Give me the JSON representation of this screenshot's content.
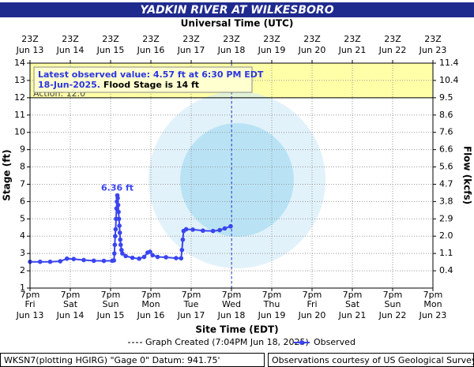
{
  "chart_data": {
    "type": "hydrograph",
    "title": "YADKIN RIVER AT WILKESBORO",
    "top_axis_label": "Universal Time (UTC)",
    "x_axis_label": "Site Time (EDT)",
    "y_axis_label": "Stage (ft)",
    "y2_axis_label": "Flow (kcfs)",
    "xlim": [
      "Jun 13 19:00",
      "Jun 23 19:00"
    ],
    "xticks": [
      {
        "value": "Jun 13 19:00",
        "time": "7pm",
        "weekday": "Fri",
        "date": "Jun 13",
        "utc_time": "23Z",
        "utc_date": "Jun 13"
      },
      {
        "value": "Jun 14 19:00",
        "time": "7pm",
        "weekday": "Sat",
        "date": "Jun 14",
        "utc_time": "23Z",
        "utc_date": "Jun 14"
      },
      {
        "value": "Jun 15 19:00",
        "time": "7pm",
        "weekday": "Sun",
        "date": "Jun 15",
        "utc_time": "23Z",
        "utc_date": "Jun 15"
      },
      {
        "value": "Jun 16 19:00",
        "time": "7pm",
        "weekday": "Mon",
        "date": "Jun 16",
        "utc_time": "23Z",
        "utc_date": "Jun 16"
      },
      {
        "value": "Jun 17 19:00",
        "time": "7pm",
        "weekday": "Tue",
        "date": "Jun 17",
        "utc_time": "23Z",
        "utc_date": "Jun 17"
      },
      {
        "value": "Jun 18 19:00",
        "time": "7pm",
        "weekday": "Wed",
        "date": "Jun 18",
        "utc_time": "23Z",
        "utc_date": "Jun 18"
      },
      {
        "value": "Jun 19 19:00",
        "time": "7pm",
        "weekday": "Thu",
        "date": "Jun 19",
        "utc_time": "23Z",
        "utc_date": "Jun 19"
      },
      {
        "value": "Jun 20 19:00",
        "time": "7pm",
        "weekday": "Fri",
        "date": "Jun 20",
        "utc_time": "23Z",
        "utc_date": "Jun 20"
      },
      {
        "value": "Jun 21 19:00",
        "time": "7pm",
        "weekday": "Sat",
        "date": "Jun 21",
        "utc_time": "23Z",
        "utc_date": "Jun 21"
      },
      {
        "value": "Jun 22 19:00",
        "time": "7pm",
        "weekday": "Sun",
        "date": "Jun 22",
        "utc_time": "23Z",
        "utc_date": "Jun 22"
      },
      {
        "value": "Jun 23 19:00",
        "time": "7pm",
        "weekday": "Mon",
        "date": "Jun 23",
        "utc_time": "23Z",
        "utc_date": "Jun 23"
      }
    ],
    "ylim": [
      1,
      14
    ],
    "yticks": [
      1,
      2,
      3,
      4,
      5,
      6,
      7,
      8,
      9,
      10,
      11,
      12,
      13,
      14
    ],
    "flow_ticks": [
      {
        "stage": 14,
        "flow": 11.4
      },
      {
        "stage": 13,
        "flow": 10.4
      },
      {
        "stage": 12,
        "flow": 9.5
      },
      {
        "stage": 11,
        "flow": 8.6
      },
      {
        "stage": 10,
        "flow": 7.6
      },
      {
        "stage": 9,
        "flow": 6.6
      },
      {
        "stage": 8,
        "flow": 5.6
      },
      {
        "stage": 7,
        "flow": 4.7
      },
      {
        "stage": 6,
        "flow": 3.8
      },
      {
        "stage": 5,
        "flow": 2.9
      },
      {
        "stage": 4,
        "flow": 2.0,
        "label": "2.0"
      },
      {
        "stage": 3,
        "flow": 1.1
      },
      {
        "stage": 2,
        "flow": 0.4
      }
    ],
    "grid": true,
    "shaded_range": [
      12,
      14
    ],
    "shade_color": "#ffffa8",
    "action_stage": {
      "value": 12,
      "label": "Action: 12.0'"
    },
    "latest_note": {
      "line1": "Latest observed value: 4.57 ft at 6:30 PM EDT",
      "line2a": "18-Jun-2025.",
      "line2b": "Flood Stage is 14 ft"
    },
    "peak_note": {
      "text": "6.36 ft",
      "x": "Jun 15 23:00",
      "y": 6.36
    },
    "graph_created": {
      "x": "Jun 18 19:04",
      "label": "Graph Created (7:04PM Jun 18, 2025)"
    },
    "series": [
      {
        "name": "Observed",
        "color": "#3a45f0",
        "x": [
          "Jun 13 19:00",
          "Jun 14 01:00",
          "Jun 14 07:00",
          "Jun 14 13:00",
          "Jun 14 17:00",
          "Jun 14 21:00",
          "Jun 15 03:00",
          "Jun 15 09:00",
          "Jun 15 15:00",
          "Jun 15 20:00",
          "Jun 15 21:00",
          "Jun 15 21:15",
          "Jun 15 21:30",
          "Jun 15 21:45",
          "Jun 15 22:00",
          "Jun 15 22:15",
          "Jun 15 22:30",
          "Jun 15 22:45",
          "Jun 15 23:00",
          "Jun 15 23:15",
          "Jun 15 23:30",
          "Jun 15 23:45",
          "Jun 16 00:00",
          "Jun 16 00:15",
          "Jun 16 00:30",
          "Jun 16 00:45",
          "Jun 16 01:00",
          "Jun 16 01:30",
          "Jun 16 02:00",
          "Jun 16 04:00",
          "Jun 16 08:00",
          "Jun 16 12:00",
          "Jun 16 15:00",
          "Jun 16 17:00",
          "Jun 16 18:30",
          "Jun 16 20:00",
          "Jun 16 23:00",
          "Jun 17 04:00",
          "Jun 17 10:00",
          "Jun 17 13:00",
          "Jun 17 13:30",
          "Jun 17 14:00",
          "Jun 17 14:30",
          "Jun 17 16:00",
          "Jun 17 20:00",
          "Jun 18 02:00",
          "Jun 18 08:00",
          "Jun 18 12:00",
          "Jun 18 15:00",
          "Jun 18 18:30"
        ],
        "values": [
          2.52,
          2.52,
          2.52,
          2.55,
          2.7,
          2.68,
          2.62,
          2.58,
          2.57,
          2.58,
          2.6,
          3.0,
          3.5,
          4.0,
          4.4,
          5.0,
          5.6,
          6.0,
          6.36,
          6.2,
          5.8,
          5.4,
          5.0,
          4.6,
          4.2,
          3.8,
          3.5,
          3.2,
          3.0,
          2.85,
          2.75,
          2.7,
          2.8,
          3.05,
          3.1,
          2.9,
          2.8,
          2.78,
          2.73,
          2.72,
          3.2,
          3.8,
          4.3,
          4.4,
          4.38,
          4.32,
          4.3,
          4.35,
          4.45,
          4.57
        ]
      }
    ],
    "footer_left": "WKSN7(plotting HGIRG) \"Gage 0\" Datum: 941.75'",
    "footer_right": "Observations courtesy of US Geological Survey"
  }
}
